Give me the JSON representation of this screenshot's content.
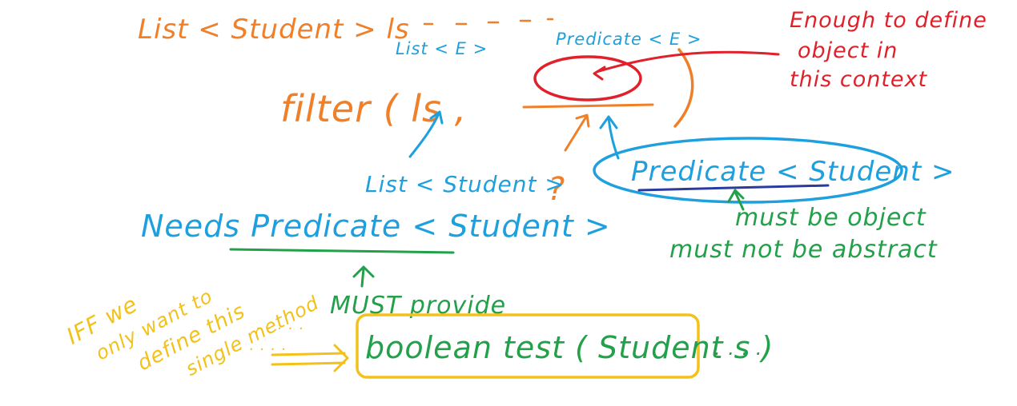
{
  "colors": {
    "orange": "#f07f2a",
    "blue": "#1ea0de",
    "red": "#e0202a",
    "green": "#22a04a",
    "yellow": "#f2c21a",
    "navy": "#2a3a9e"
  },
  "labels": {
    "list_student_ls": "List < Student > ls",
    "list_e": "List < E >",
    "predicate_e": "Predicate < E >",
    "filter_call": "filter ( ls ,",
    "question_mark": "?",
    "list_student": "List < Student >",
    "predicate_student": "Predicate < Student >",
    "enough_line1": "Enough to define",
    "enough_line2": "object in",
    "enough_line3": "this context",
    "needs_predicate": "Needs Predicate < Student >",
    "must_be_object": "must be object",
    "must_not_abstract": "must not be abstract",
    "must_provide": "MUST provide",
    "boolean_test": "boolean test ( Student s )",
    "trailing_dots": ". . . .",
    "iff_line1": "IFF we",
    "iff_line2": "only want to",
    "iff_line3": "define this",
    "iff_line4": "single method",
    "iff_dots1": ". . . . .",
    "iff_dots2": ". . . . ."
  }
}
